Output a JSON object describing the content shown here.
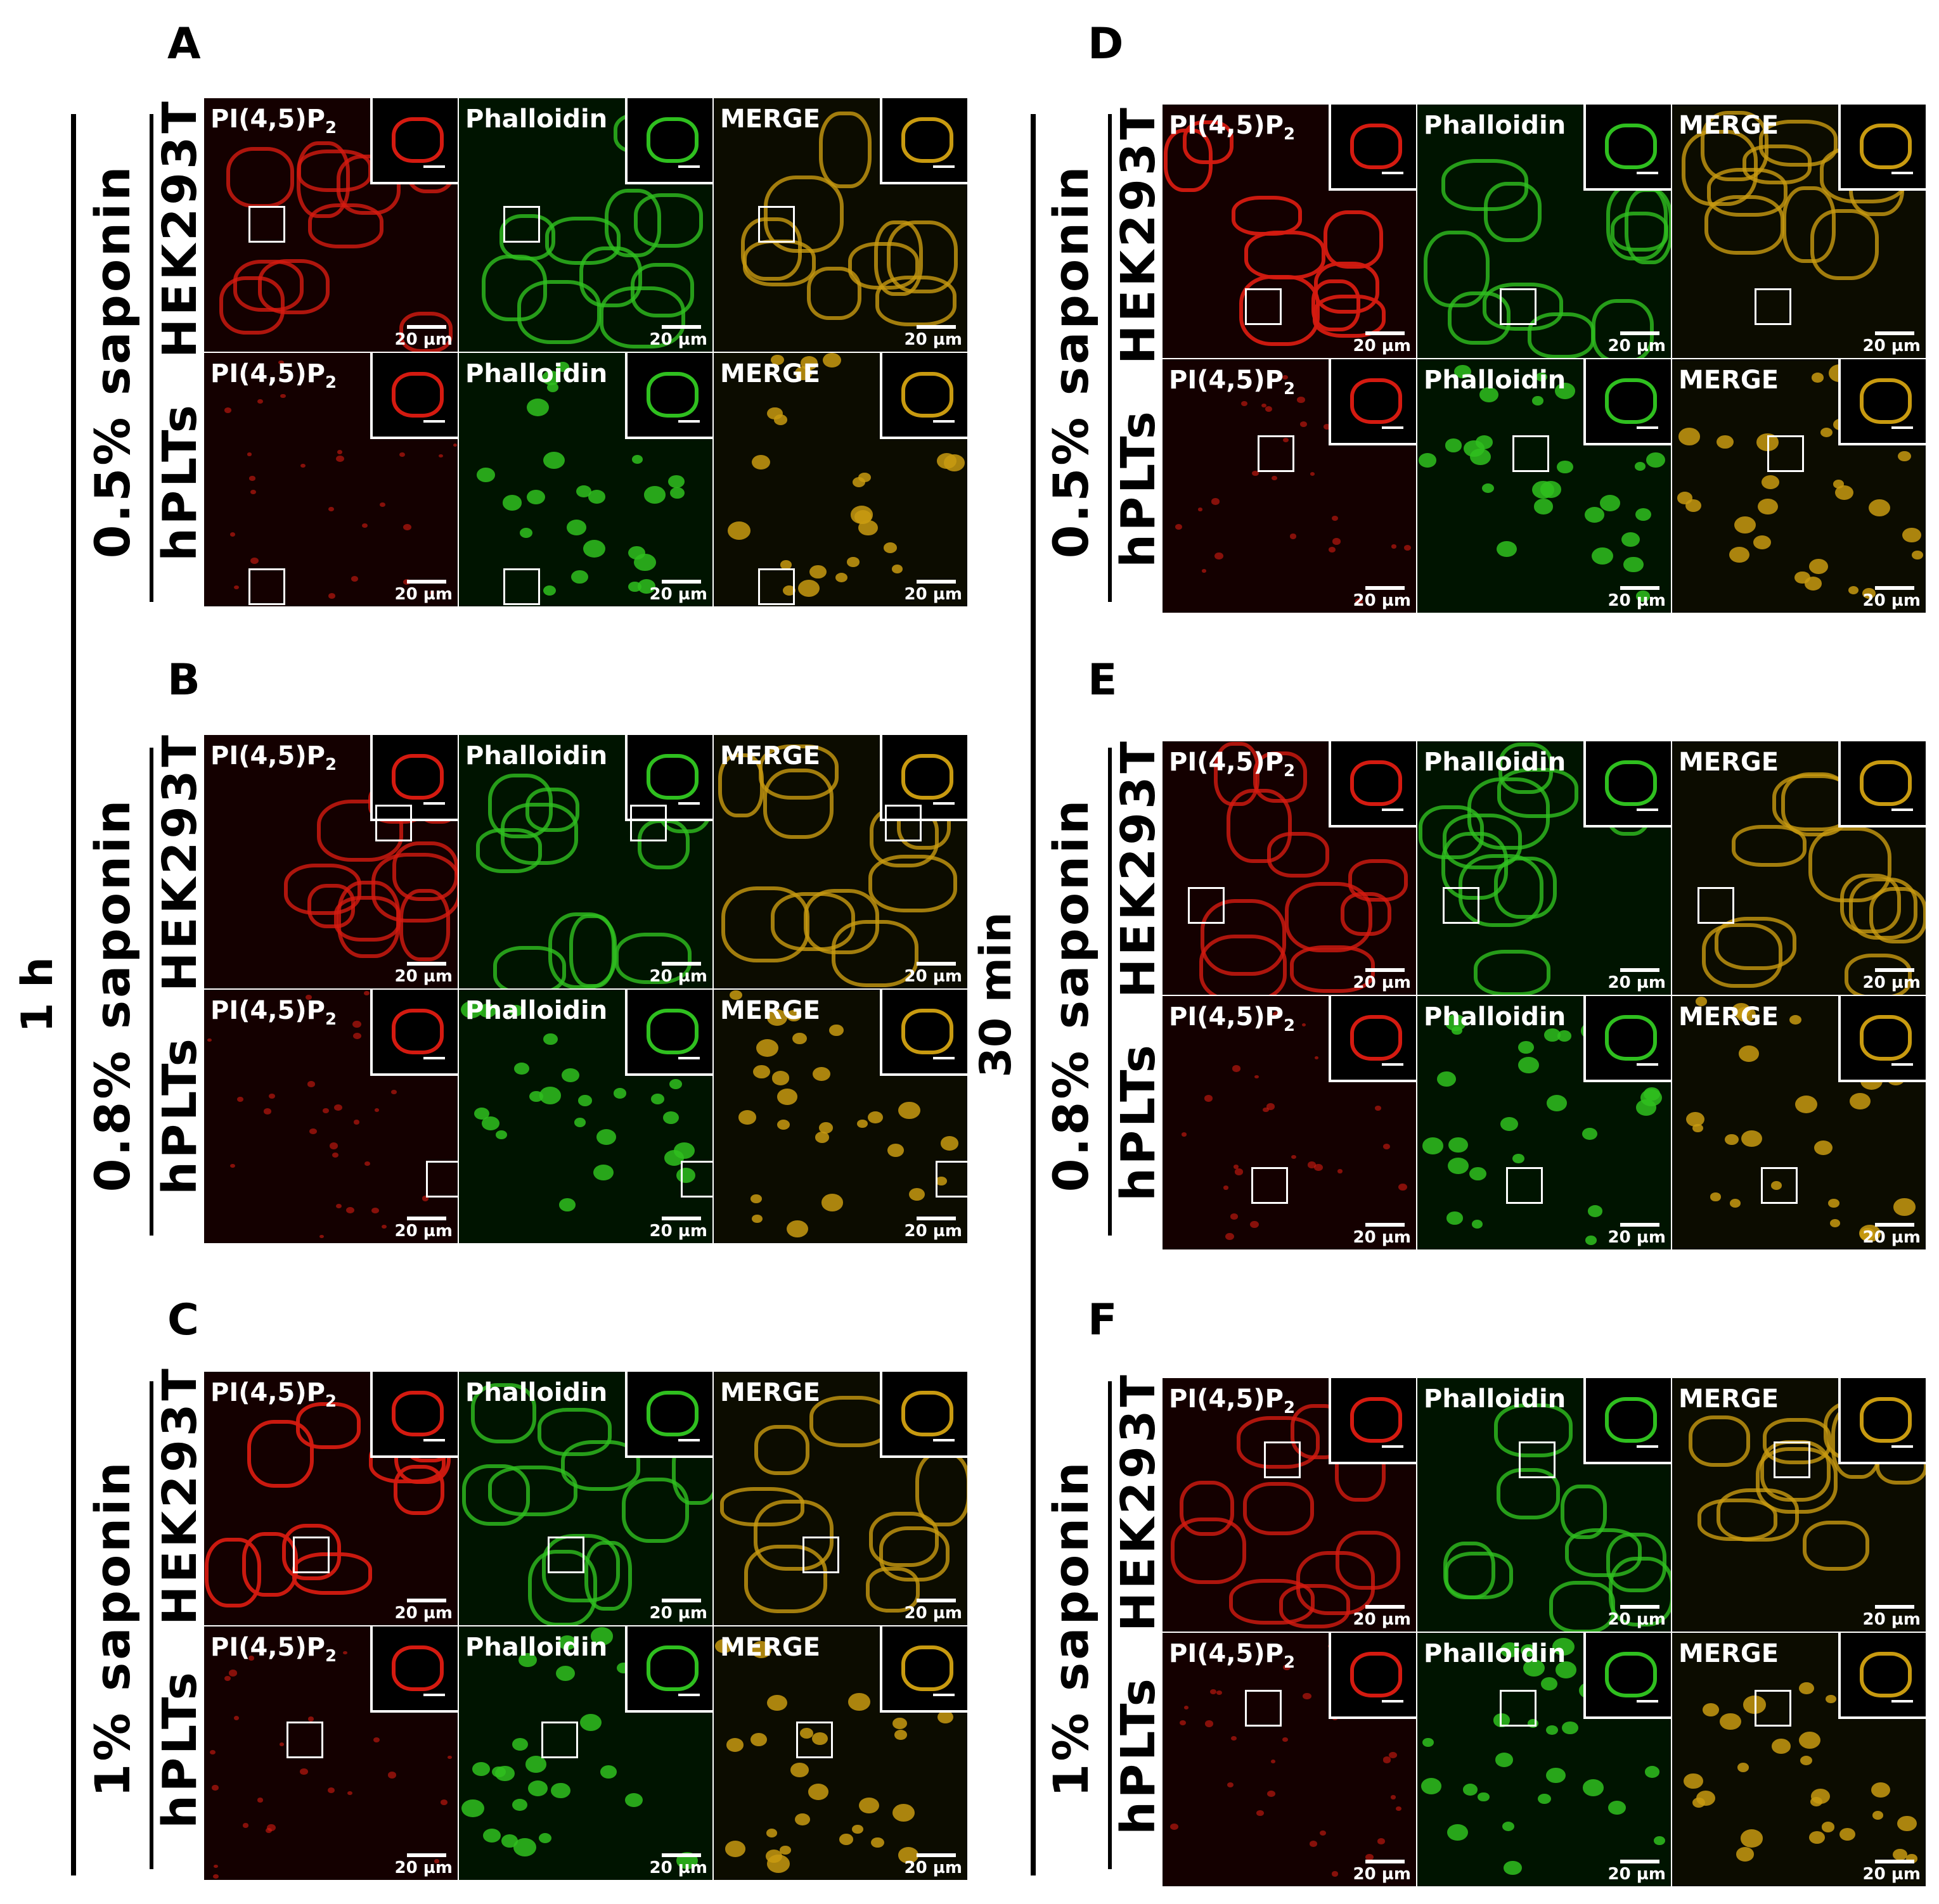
{
  "panels": {
    "A": "A",
    "B": "B",
    "C": "C",
    "D": "D",
    "E": "E",
    "F": "F"
  },
  "time_labels": {
    "left": "1 h",
    "right": "30 min"
  },
  "concentrations": {
    "c05": "0.5% saponin",
    "c08": "0.8% saponin",
    "c1": "1% saponin"
  },
  "cell_types": {
    "hek": "HEK293T",
    "plt": "hPLTs"
  },
  "channels": {
    "pip2_main": "PI(4,5)P",
    "pip2_sub": "2",
    "phalloidin": "Phalloidin",
    "merge": "MERGE"
  },
  "scale_bar": "20 µm",
  "colors": {
    "pip2": "#ff2a1a",
    "phalloidin": "#33dd22",
    "merge": "#ffb400"
  }
}
